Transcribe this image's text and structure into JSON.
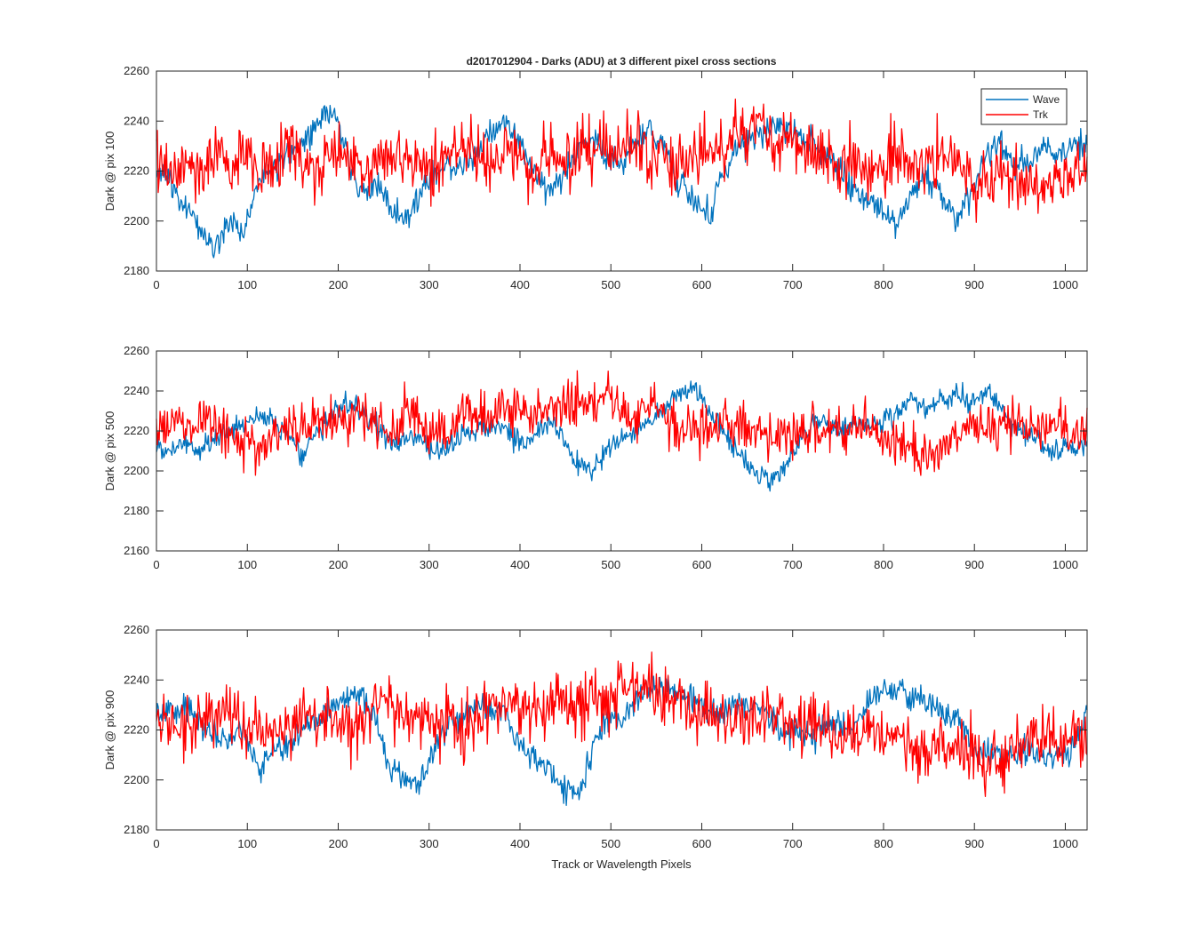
{
  "figure": {
    "title": "d2017012904 - Darks (ADU) at 3 different pixel cross sections",
    "xlabel": "Track or Wavelength Pixels",
    "legend": {
      "placement": "top-right",
      "entries": [
        "Wave",
        "Trk"
      ]
    },
    "colors": {
      "Wave": "#0072BD",
      "Trk": "#FF0000",
      "axes": "#262626"
    }
  },
  "chart_data": [
    {
      "type": "line",
      "ylabel": "Dark @ pix 100",
      "xlim": [
        0,
        1024
      ],
      "ylim": [
        2180,
        2260
      ],
      "xticks": [
        0,
        100,
        200,
        300,
        400,
        500,
        600,
        700,
        800,
        900,
        1000
      ],
      "yticks": [
        2180,
        2200,
        2220,
        2240,
        2260
      ],
      "grid": false,
      "x_sampling": {
        "start": 0,
        "step": 16
      },
      "series": [
        {
          "name": "Wave",
          "values": [
            2222,
            2215,
            2205,
            2198,
            2190,
            2200,
            2195,
            2215,
            2220,
            2226,
            2230,
            2238,
            2245,
            2230,
            2210,
            2215,
            2206,
            2200,
            2210,
            2219,
            2222,
            2222,
            2228,
            2236,
            2240,
            2230,
            2220,
            2210,
            2220,
            2228,
            2232,
            2226,
            2222,
            2232,
            2237,
            2230,
            2215,
            2207,
            2202,
            2220,
            2230,
            2232,
            2236,
            2238,
            2236,
            2232,
            2226,
            2220,
            2212,
            2210,
            2204,
            2200,
            2212,
            2218,
            2210,
            2200,
            2212,
            2226,
            2232,
            2222,
            2223,
            2230,
            2226,
            2230,
            2232,
            2236,
            2232,
            2222,
            2212,
            2216,
            2222,
            2226,
            2233,
            2226,
            2223
          ]
        },
        {
          "name": "Trk",
          "values": [
            2226,
            2218,
            2224,
            2218,
            2229,
            2220,
            2227,
            2221,
            2223,
            2230,
            2225,
            2220,
            2228,
            2228,
            2220,
            2223,
            2225,
            2227,
            2224,
            2222,
            2226,
            2229,
            2227,
            2220,
            2229,
            2224,
            2221,
            2228,
            2222,
            2230,
            2228,
            2227,
            2230,
            2232,
            2227,
            2225,
            2221,
            2226,
            2229,
            2227,
            2234,
            2237,
            2236,
            2233,
            2232,
            2228,
            2225,
            2222,
            2226,
            2222,
            2220,
            2224,
            2222,
            2223,
            2224,
            2223,
            2216,
            2214,
            2222,
            2214,
            2216,
            2212,
            2217,
            2217,
            2220,
            2224,
            2220,
            2219,
            2222,
            2222,
            2225,
            2226,
            2224,
            2227,
            2223
          ]
        }
      ]
    },
    {
      "type": "line",
      "ylabel": "Dark @ pix 500",
      "xlim": [
        0,
        1024
      ],
      "ylim": [
        2160,
        2260
      ],
      "xticks": [
        0,
        100,
        200,
        300,
        400,
        500,
        600,
        700,
        800,
        900,
        1000
      ],
      "yticks": [
        2160,
        2180,
        2200,
        2220,
        2240,
        2260
      ],
      "grid": false,
      "x_sampling": {
        "start": 0,
        "step": 16
      },
      "series": [
        {
          "name": "Wave",
          "values": [
            2210,
            2212,
            2215,
            2210,
            2218,
            2220,
            2223,
            2228,
            2225,
            2220,
            2208,
            2218,
            2228,
            2234,
            2230,
            2225,
            2215,
            2214,
            2216,
            2210,
            2212,
            2220,
            2220,
            2222,
            2222,
            2214,
            2218,
            2225,
            2215,
            2202,
            2200,
            2210,
            2218,
            2220,
            2226,
            2232,
            2238,
            2240,
            2230,
            2220,
            2210,
            2200,
            2195,
            2200,
            2212,
            2225,
            2224,
            2222,
            2222,
            2222,
            2226,
            2230,
            2236,
            2232,
            2236,
            2240,
            2235,
            2240,
            2232,
            2222,
            2218,
            2214,
            2210,
            2212,
            2214,
            2208,
            2212,
            2214,
            2218,
            2222,
            2226,
            2226,
            2226,
            2220,
            2220
          ]
        },
        {
          "name": "Trk",
          "values": [
            2220,
            2225,
            2223,
            2227,
            2222,
            2220,
            2216,
            2210,
            2216,
            2222,
            2225,
            2225,
            2225,
            2230,
            2230,
            2224,
            2220,
            2230,
            2226,
            2220,
            2218,
            2232,
            2228,
            2228,
            2228,
            2235,
            2225,
            2230,
            2234,
            2232,
            2232,
            2238,
            2232,
            2226,
            2232,
            2230,
            2218,
            2222,
            2222,
            2224,
            2222,
            2220,
            2218,
            2220,
            2218,
            2220,
            2218,
            2222,
            2220,
            2225,
            2215,
            2218,
            2212,
            2206,
            2212,
            2215,
            2222,
            2222,
            2220,
            2224,
            2222,
            2220,
            2220,
            2220,
            2220,
            2222,
            2220,
            2220,
            2224,
            2222,
            2218,
            2220,
            2220,
            2222,
            2218
          ]
        }
      ]
    },
    {
      "type": "line",
      "ylabel": "Dark @ pix 900",
      "xlim": [
        0,
        1024
      ],
      "ylim": [
        2180,
        2260
      ],
      "xticks": [
        0,
        100,
        200,
        300,
        400,
        500,
        600,
        700,
        800,
        900,
        1000
      ],
      "yticks": [
        2180,
        2200,
        2220,
        2240,
        2260
      ],
      "grid": false,
      "x_sampling": {
        "start": 0,
        "step": 16
      },
      "series": [
        {
          "name": "Wave",
          "values": [
            2226,
            2225,
            2230,
            2222,
            2218,
            2215,
            2222,
            2205,
            2212,
            2214,
            2220,
            2222,
            2228,
            2232,
            2234,
            2224,
            2206,
            2200,
            2198,
            2210,
            2222,
            2226,
            2230,
            2228,
            2226,
            2214,
            2208,
            2205,
            2196,
            2195,
            2212,
            2226,
            2224,
            2232,
            2236,
            2235,
            2236,
            2232,
            2228,
            2226,
            2230,
            2230,
            2228,
            2218,
            2220,
            2216,
            2222,
            2222,
            2222,
            2232,
            2236,
            2235,
            2232,
            2230,
            2228,
            2224,
            2216,
            2210,
            2210,
            2208,
            2212,
            2210,
            2210,
            2212,
            2228,
            2230,
            2222,
            2215,
            2206,
            2200,
            2204,
            2214,
            2224,
            2226,
            2226
          ]
        },
        {
          "name": "Trk",
          "values": [
            2226,
            2222,
            2220,
            2226,
            2224,
            2228,
            2218,
            2220,
            2220,
            2223,
            2225,
            2222,
            2224,
            2224,
            2222,
            2228,
            2233,
            2228,
            2225,
            2222,
            2224,
            2221,
            2225,
            2230,
            2230,
            2228,
            2227,
            2229,
            2234,
            2228,
            2232,
            2232,
            2238,
            2238,
            2236,
            2232,
            2230,
            2228,
            2226,
            2222,
            2226,
            2226,
            2224,
            2224,
            2218,
            2222,
            2222,
            2218,
            2218,
            2222,
            2218,
            2220,
            2214,
            2210,
            2214,
            2210,
            2216,
            2210,
            2206,
            2214,
            2217,
            2217,
            2215,
            2220,
            2218,
            2218,
            2218,
            2214,
            2218,
            2218,
            2222,
            2226,
            2226,
            2222,
            2222
          ]
        }
      ]
    }
  ]
}
